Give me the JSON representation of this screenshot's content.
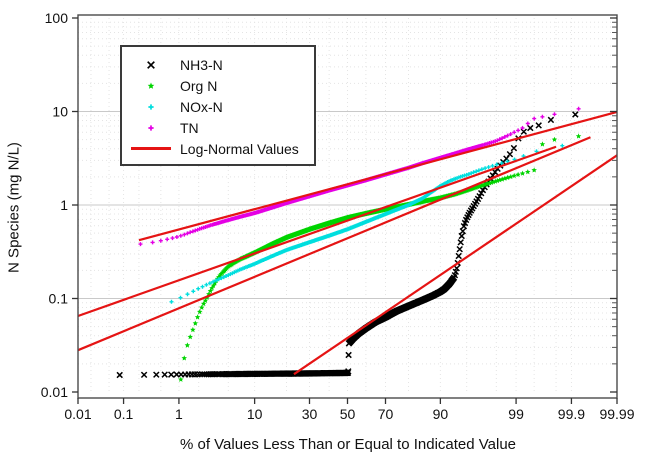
{
  "chart_data": {
    "type": "scatter",
    "title": "",
    "xlabel": "% of Values Less Than or Equal to Indicated Value",
    "ylabel": "N Species (mg N/L)",
    "x_scale": "normal-probability-percent",
    "y_scale": "log",
    "xlim": [
      0.01,
      99.99
    ],
    "ylim": [
      0.01,
      100
    ],
    "x_ticks": [
      0.01,
      0.1,
      1,
      10,
      30,
      50,
      70,
      90,
      99,
      99.9,
      99.99
    ],
    "x_tick_labels": [
      "0.01",
      "0.1",
      "1",
      "10",
      "30",
      "50",
      "70",
      "90",
      "99",
      "99.9",
      "99.99"
    ],
    "y_ticks": [
      0.01,
      0.1,
      1,
      10,
      100
    ],
    "y_tick_labels": [
      "0.01",
      "0.1",
      "1",
      "10",
      "100"
    ],
    "grid": "major-horizontal-solid, minor-dotted",
    "colors": {
      "grid_major": "#c9c9c9",
      "grid_minor": "#e4e4e4",
      "frame": "#4a4a4a",
      "red_line": "#e51414"
    },
    "series": [
      {
        "name": "NH3-N",
        "color": "#000000",
        "marker": "x",
        "n": 600,
        "points": [
          [
            0.08,
            0.0152
          ],
          [
            30,
            0.0158
          ],
          [
            50.4,
            0.016
          ],
          [
            50.7,
            0.033
          ],
          [
            53,
            0.037
          ],
          [
            56,
            0.042
          ],
          [
            60,
            0.048
          ],
          [
            65,
            0.056
          ],
          [
            70,
            0.063
          ],
          [
            75,
            0.073
          ],
          [
            80,
            0.083
          ],
          [
            85,
            0.096
          ],
          [
            88,
            0.107
          ],
          [
            90,
            0.118
          ],
          [
            91,
            0.127
          ],
          [
            92,
            0.143
          ],
          [
            93,
            0.17
          ],
          [
            93.5,
            0.22
          ],
          [
            93.8,
            0.3
          ],
          [
            94.2,
            0.45
          ],
          [
            94.6,
            0.6
          ],
          [
            95,
            0.72
          ],
          [
            95.5,
            0.85
          ],
          [
            96,
            1.0
          ],
          [
            96.5,
            1.2
          ],
          [
            97,
            1.5
          ],
          [
            97.5,
            1.85
          ],
          [
            98,
            2.35
          ],
          [
            98.4,
            2.85
          ],
          [
            98.7,
            3.35
          ],
          [
            98.95,
            4.2
          ],
          [
            99.1,
            5.3
          ],
          [
            99.3,
            6.4
          ],
          [
            99.5,
            6.9
          ],
          [
            99.65,
            7.3
          ],
          [
            99.8,
            8.7
          ],
          [
            99.93,
            9.4
          ]
        ]
      },
      {
        "name": "Org N",
        "color": "#00d400",
        "marker": "star",
        "n": 700,
        "points": [
          [
            1.05,
            0.0125
          ],
          [
            1.25,
            0.026
          ],
          [
            1.4,
            0.034
          ],
          [
            1.6,
            0.044
          ],
          [
            1.8,
            0.055
          ],
          [
            2,
            0.068
          ],
          [
            2.3,
            0.085
          ],
          [
            2.6,
            0.1
          ],
          [
            3,
            0.125
          ],
          [
            3.5,
            0.155
          ],
          [
            4,
            0.18
          ],
          [
            4.5,
            0.2
          ],
          [
            5,
            0.22
          ],
          [
            6,
            0.245
          ],
          [
            7,
            0.265
          ],
          [
            8,
            0.28
          ],
          [
            10,
            0.31
          ],
          [
            12,
            0.34
          ],
          [
            15,
            0.385
          ],
          [
            20,
            0.45
          ],
          [
            25,
            0.5
          ],
          [
            30,
            0.55
          ],
          [
            40,
            0.64
          ],
          [
            50,
            0.73
          ],
          [
            60,
            0.81
          ],
          [
            70,
            0.9
          ],
          [
            80,
            1.01
          ],
          [
            85,
            1.09
          ],
          [
            90,
            1.19
          ],
          [
            93,
            1.3
          ],
          [
            95,
            1.43
          ],
          [
            96,
            1.52
          ],
          [
            97,
            1.64
          ],
          [
            98,
            1.8
          ],
          [
            98.5,
            1.92
          ],
          [
            99,
            2.08
          ],
          [
            99.3,
            2.22
          ],
          [
            99.55,
            2.4
          ],
          [
            99.62,
            4.4
          ],
          [
            99.78,
            5.0
          ],
          [
            99.93,
            5.45
          ]
        ]
      },
      {
        "name": "NOx-N",
        "color": "#00dede",
        "marker": "plus",
        "n": 330,
        "points": [
          [
            0.7,
            0.09
          ],
          [
            1,
            0.1
          ],
          [
            1.5,
            0.115
          ],
          [
            2,
            0.128
          ],
          [
            3,
            0.148
          ],
          [
            5,
            0.178
          ],
          [
            7,
            0.205
          ],
          [
            10,
            0.235
          ],
          [
            15,
            0.285
          ],
          [
            20,
            0.33
          ],
          [
            30,
            0.4
          ],
          [
            40,
            0.47
          ],
          [
            50,
            0.55
          ],
          [
            60,
            0.66
          ],
          [
            70,
            0.8
          ],
          [
            80,
            1.0
          ],
          [
            85,
            1.18
          ],
          [
            88,
            1.4
          ],
          [
            90,
            1.6
          ],
          [
            92,
            1.8
          ],
          [
            94,
            2.0
          ],
          [
            95,
            2.1
          ],
          [
            96,
            2.25
          ],
          [
            97,
            2.45
          ],
          [
            98,
            2.7
          ],
          [
            99,
            3.1
          ],
          [
            99.3,
            3.4
          ],
          [
            99.55,
            3.75
          ],
          [
            99.86,
            4.35
          ]
        ]
      },
      {
        "name": "TN",
        "color": "#e400e4",
        "marker": "plus",
        "n": 700,
        "points": [
          [
            0.1,
            0.37
          ],
          [
            0.2,
            0.38
          ],
          [
            0.3,
            0.39
          ],
          [
            0.5,
            0.415
          ],
          [
            0.7,
            0.435
          ],
          [
            1,
            0.46
          ],
          [
            1.5,
            0.51
          ],
          [
            2,
            0.55
          ],
          [
            3,
            0.61
          ],
          [
            5,
            0.69
          ],
          [
            7,
            0.75
          ],
          [
            10,
            0.82
          ],
          [
            15,
            0.94
          ],
          [
            20,
            1.05
          ],
          [
            30,
            1.24
          ],
          [
            40,
            1.43
          ],
          [
            50,
            1.62
          ],
          [
            60,
            1.84
          ],
          [
            70,
            2.12
          ],
          [
            80,
            2.5
          ],
          [
            85,
            2.8
          ],
          [
            90,
            3.2
          ],
          [
            93,
            3.55
          ],
          [
            95,
            3.9
          ],
          [
            97,
            4.4
          ],
          [
            98,
            4.85
          ],
          [
            98.7,
            5.6
          ],
          [
            99.2,
            6.6
          ],
          [
            99.35,
            7.4
          ],
          [
            99.5,
            8.4
          ],
          [
            99.65,
            8.8
          ],
          [
            99.8,
            9.4
          ],
          [
            99.94,
            10.9
          ]
        ]
      }
    ],
    "fit_lines": {
      "name": "Log-Normal Values",
      "color": "#e51414",
      "segments": [
        {
          "for": "TN",
          "from": [
            0.2,
            0.42
          ],
          "to": [
            99.99,
            9.9
          ]
        },
        {
          "for": "NOx-N",
          "from": [
            0.01,
            0.065
          ],
          "to": [
            99.8,
            4.2
          ]
        },
        {
          "for": "Org N",
          "from": [
            0.01,
            0.028
          ],
          "to": [
            99.96,
            5.3
          ]
        },
        {
          "for": "NH3-N",
          "from": [
            23,
            0.0155
          ],
          "to": [
            99.99,
            3.4
          ]
        }
      ]
    },
    "legend": {
      "position": "upper-left-inside",
      "entries": [
        "NH3-N",
        "Org N",
        "NOx-N",
        "TN",
        "Log-Normal Values"
      ]
    }
  }
}
